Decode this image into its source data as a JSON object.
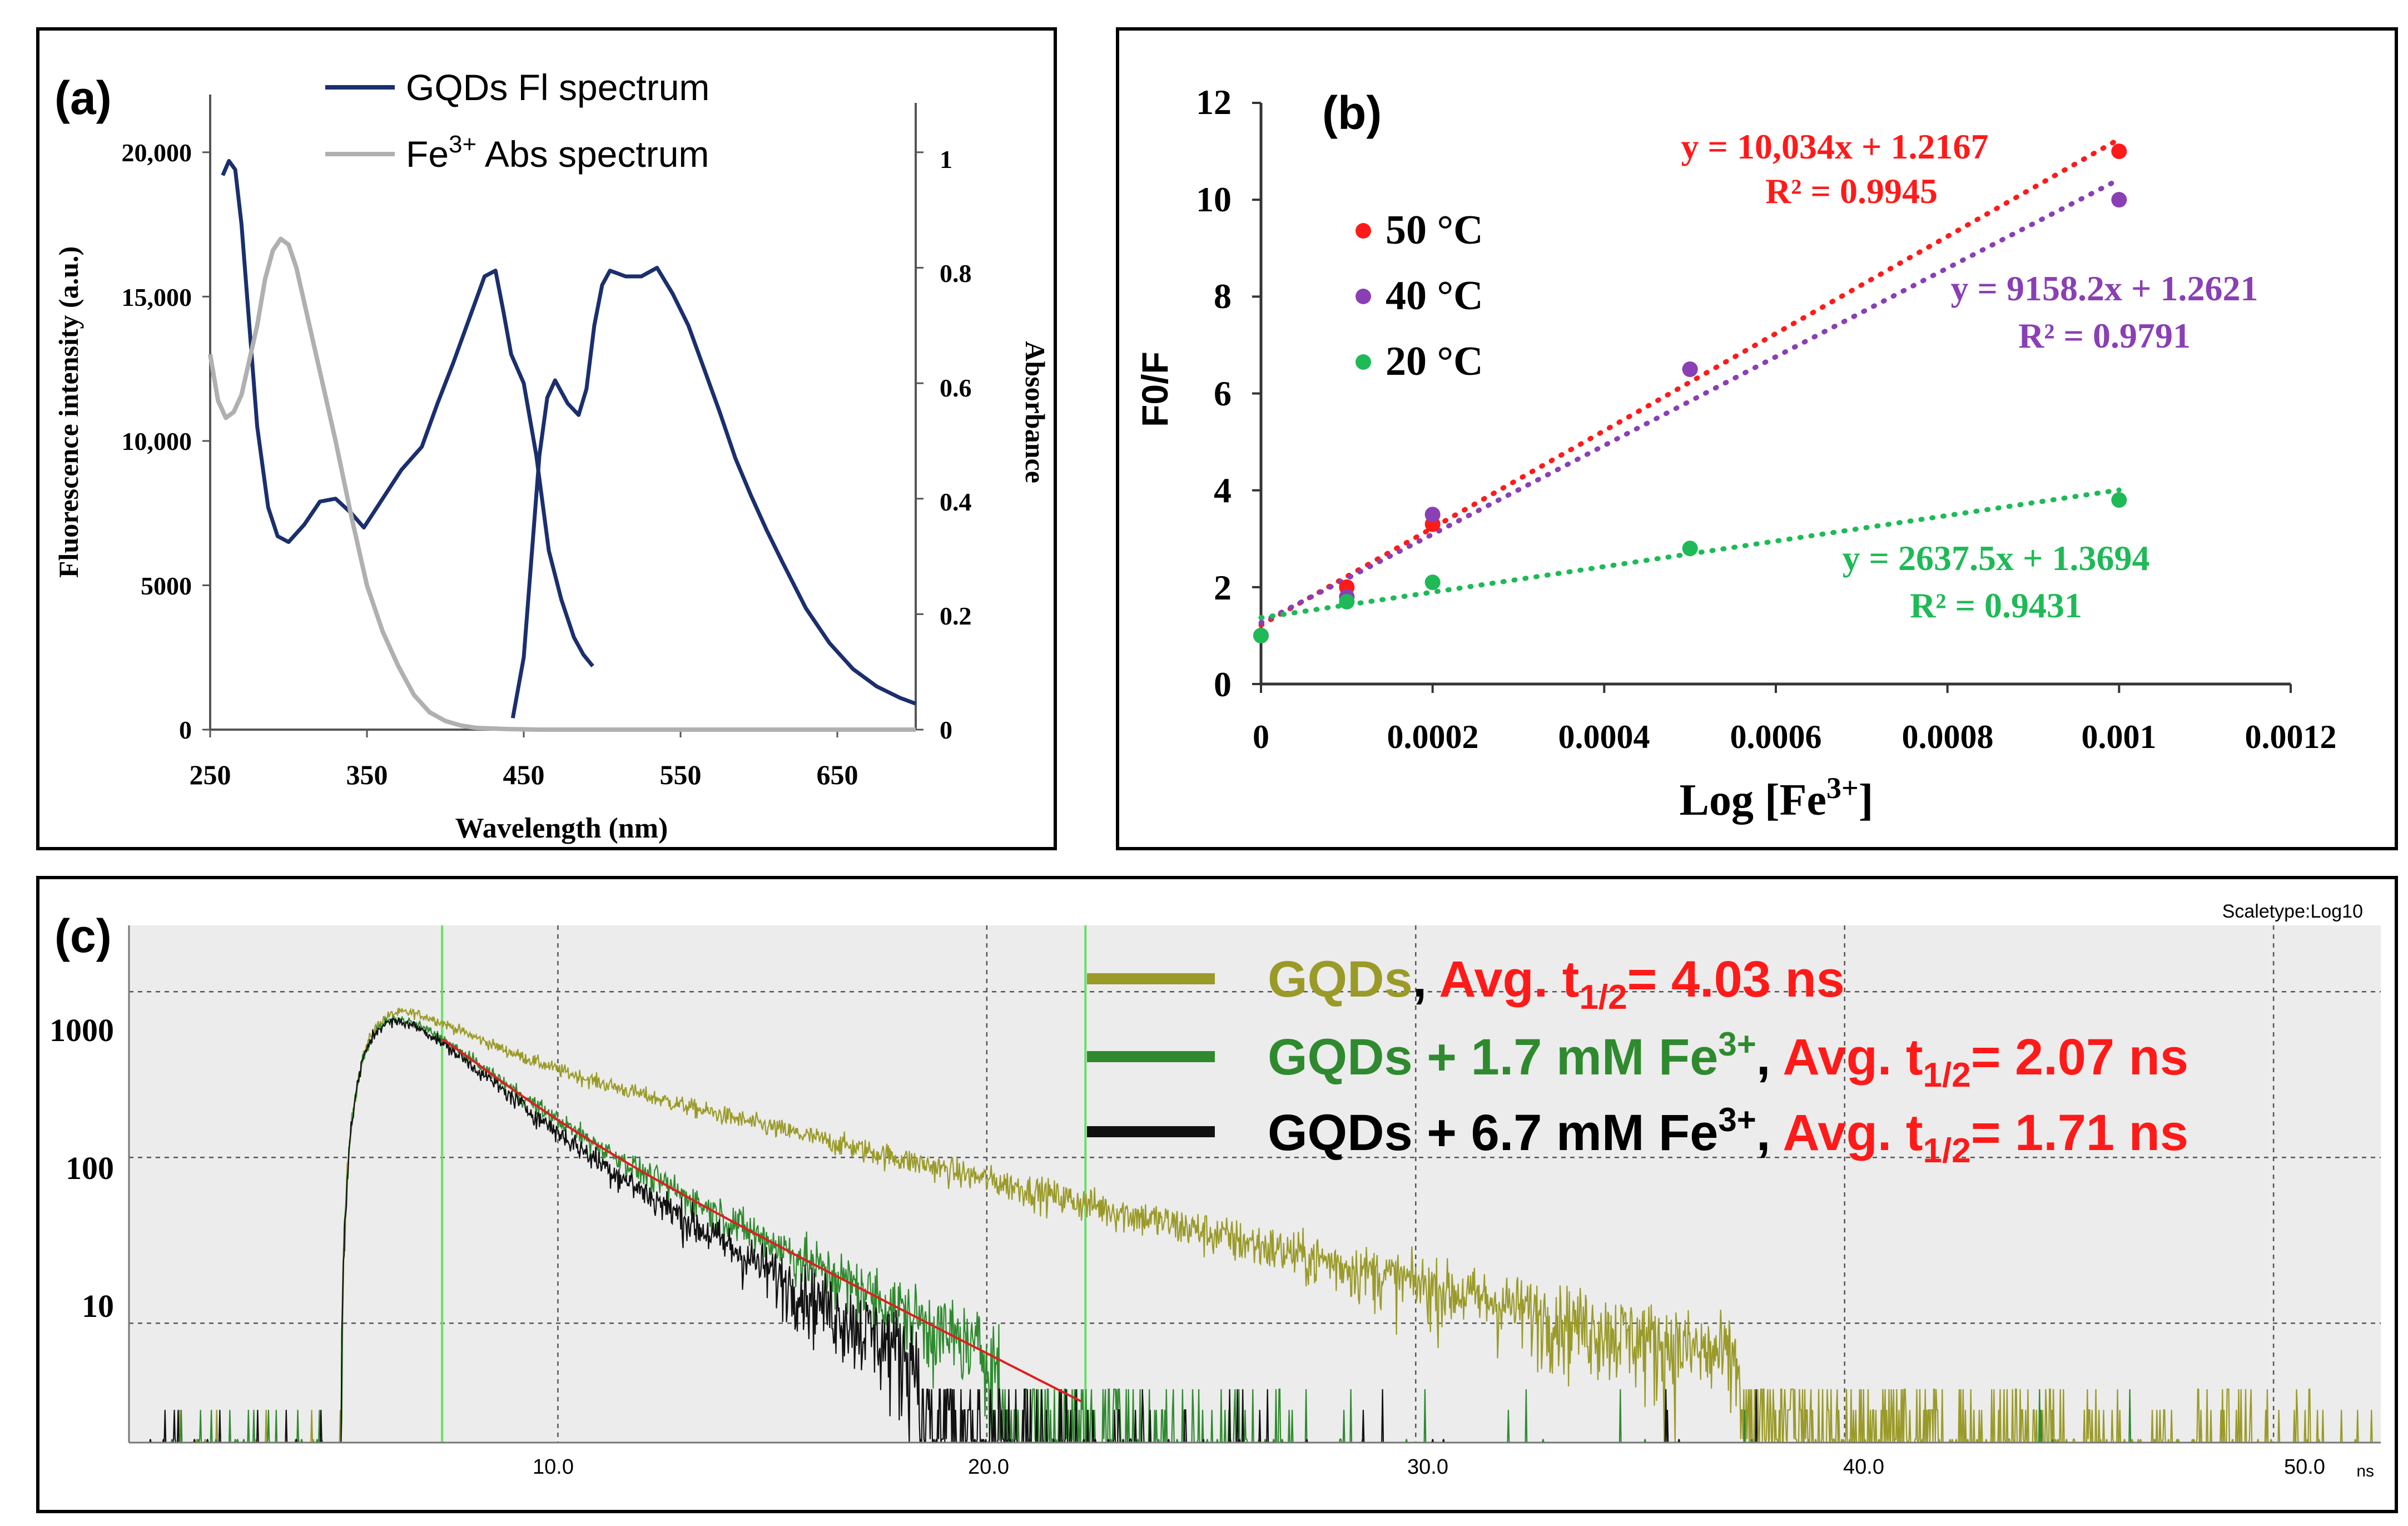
{
  "chart_data": [
    {
      "panel": "(a)",
      "type": "line",
      "xlabel": "Wavelength (nm)",
      "ylabel": "Fluorescence intensity (a.u.)",
      "y2label": "Absorbance",
      "xlim": [
        250,
        700
      ],
      "ylim": [
        0,
        22000
      ],
      "y2lim": [
        0,
        1.1
      ],
      "xticks": [
        "250",
        "350",
        "450",
        "550",
        "650"
      ],
      "yticks": [
        "0",
        "5000",
        "10,000",
        "15,000",
        "20,000"
      ],
      "y2ticks": [
        "0",
        "0.2",
        "0.4",
        "0.6",
        "0.8",
        "1"
      ],
      "legend": [
        {
          "name": "GQDs Fl spectrum",
          "color": "#1b2f6e"
        },
        {
          "name_prefix": "Fe",
          "name_sup": "3+",
          "name_suffix": " Abs spectrum",
          "color": "#b0b0b0"
        }
      ],
      "series": [
        {
          "name": "GQDs Fl spectrum (excitation)",
          "axis": "left",
          "color": "#1b2f6e",
          "x": [
            258,
            262,
            266,
            270,
            275,
            280,
            287,
            293,
            300,
            310,
            320,
            330,
            340,
            348,
            360,
            372,
            385,
            395,
            405,
            415,
            425,
            432,
            437,
            442,
            450,
            458,
            466,
            474,
            482,
            488,
            494
          ],
          "y": [
            19200,
            19700,
            19400,
            17500,
            14000,
            10500,
            7700,
            6700,
            6500,
            7100,
            7900,
            8000,
            7500,
            7000,
            8000,
            9000,
            9800,
            11300,
            12700,
            14200,
            15700,
            15900,
            14500,
            13000,
            12000,
            9500,
            6200,
            4500,
            3200,
            2600,
            2200
          ]
        },
        {
          "name": "GQDs Fl spectrum (emission)",
          "axis": "left",
          "color": "#1b2f6e",
          "x": [
            443,
            450,
            460,
            465,
            470,
            478,
            485,
            490,
            495,
            500,
            505,
            515,
            525,
            535,
            545,
            555,
            565,
            575,
            585,
            595,
            605,
            615,
            630,
            645,
            660,
            675,
            690,
            700
          ],
          "y": [
            400,
            2500,
            9500,
            11500,
            12100,
            11300,
            10900,
            11800,
            14000,
            15400,
            15900,
            15700,
            15700,
            16000,
            15100,
            14000,
            12500,
            11000,
            9400,
            8100,
            6900,
            5800,
            4200,
            3000,
            2100,
            1500,
            1100,
            900
          ]
        },
        {
          "name": "Fe3+ Abs spectrum",
          "axis": "right",
          "color": "#b0b0b0",
          "x": [
            250,
            255,
            260,
            265,
            270,
            275,
            280,
            285,
            290,
            295,
            300,
            305,
            310,
            320,
            330,
            340,
            350,
            360,
            370,
            380,
            390,
            400,
            410,
            420,
            440,
            460,
            500,
            550,
            600,
            650,
            700
          ],
          "y": [
            0.65,
            0.57,
            0.54,
            0.55,
            0.58,
            0.64,
            0.7,
            0.78,
            0.83,
            0.85,
            0.84,
            0.8,
            0.74,
            0.62,
            0.5,
            0.37,
            0.25,
            0.17,
            0.11,
            0.06,
            0.03,
            0.015,
            0.007,
            0.003,
            0.001,
            0,
            0,
            0,
            0,
            0,
            0
          ]
        }
      ]
    },
    {
      "panel": "(b)",
      "type": "scatter",
      "xlabel_main": "Log [Fe",
      "xlabel_sup": "3+",
      "xlabel_close": "]",
      "ylabel": "F0/F",
      "xlim": [
        0,
        0.0012
      ],
      "ylim": [
        0,
        12
      ],
      "xticks": [
        "0",
        "0.0002",
        "0.0004",
        "0.0006",
        "0.0008",
        "0.001",
        "0.0012"
      ],
      "yticks": [
        "0",
        "2",
        "4",
        "6",
        "8",
        "10",
        "12"
      ],
      "series": [
        {
          "name": "50 °C",
          "color": "#ff1a1a",
          "x": [
            0,
            0.0001,
            0.0002,
            0.0005,
            0.001
          ],
          "y": [
            1.0,
            2.0,
            3.3,
            6.5,
            11.0
          ],
          "fit": {
            "slope": 10034,
            "intercept": 1.2167
          },
          "equation": "y = 10,034x + 1.2167",
          "r2": "R² = 0.9945"
        },
        {
          "name": "40 °C",
          "color": "#8a3fb5",
          "x": [
            0,
            0.0001,
            0.0002,
            0.0005,
            0.001
          ],
          "y": [
            1.0,
            1.8,
            3.5,
            6.5,
            10.0
          ],
          "fit": {
            "slope": 9158.2,
            "intercept": 1.2621
          },
          "equation": "y = 9158.2x + 1.2621",
          "r2": "R² = 0.9791"
        },
        {
          "name": "20 °C",
          "color": "#1fba57",
          "x": [
            0,
            0.0001,
            0.0002,
            0.0005,
            0.001
          ],
          "y": [
            1.0,
            1.7,
            2.1,
            2.8,
            3.8
          ],
          "fit": {
            "slope": 2637.5,
            "intercept": 1.3694
          },
          "equation": "y = 2637.5x + 1.3694",
          "r2": "R² = 0.9431"
        }
      ]
    },
    {
      "panel": "(c)",
      "type": "line",
      "scale_note": "Scaletype:Log10",
      "xunit": "ns",
      "xlim": [
        0,
        52.5
      ],
      "ylim_log10": [
        0.28,
        3.4
      ],
      "xticks": [
        "10.0",
        "20.0",
        "30.0",
        "40.0",
        "50.0"
      ],
      "yticks": [
        "10",
        "100",
        "1000"
      ],
      "cursor_lines_ns": [
        7.3,
        22.3
      ],
      "series": [
        {
          "name": "GQDs",
          "color": "#9a9a28",
          "tau": 4.03,
          "label_main": "GQDs",
          "label_comma": ",",
          "avg_main": "Avg. t",
          "avg_sub": "1/2",
          "avg_value": "= 4.03 ns",
          "decay_params": {
            "t0": 4.9,
            "rise_tau": 0.75,
            "fast_amp": 0.72,
            "fast_tau": 1.3,
            "slow_amp": 0.28,
            "slow_tau": 7.0,
            "peak": 950
          }
        },
        {
          "name": "GQDs + 1.7 mM Fe3+",
          "color": "#2f8a2f",
          "tau": 2.07,
          "label_main": "GQDs + 1.7 mM  Fe",
          "label_sup": "3+",
          "label_comma": ",",
          "avg_main": "Avg. t",
          "avg_sub": "1/2",
          "avg_value": "= 2.07 ns",
          "decay_params": {
            "t0": 4.9,
            "rise_tau": 0.75,
            "fast_amp": 0.72,
            "fast_tau": 1.3,
            "slow_amp": 0.28,
            "slow_tau": 3.3,
            "peak": 950
          }
        },
        {
          "name": "GQDs + 6.7 mM Fe3+",
          "color": "#111111",
          "tau": 1.71,
          "label_main": "GQDs + 6.7 mM Fe",
          "label_sup": "3+",
          "label_comma": ",",
          "avg_main": "Avg. t",
          "avg_sub": "1/2",
          "avg_value": "= 1.71 ns",
          "decay_params": {
            "t0": 4.9,
            "rise_tau": 0.75,
            "fast_amp": 0.72,
            "fast_tau": 1.3,
            "slow_amp": 0.28,
            "slow_tau": 2.9,
            "peak": 950
          }
        }
      ],
      "fit_color": "#e01e1e",
      "avg_color": "#ff1a1a"
    }
  ]
}
